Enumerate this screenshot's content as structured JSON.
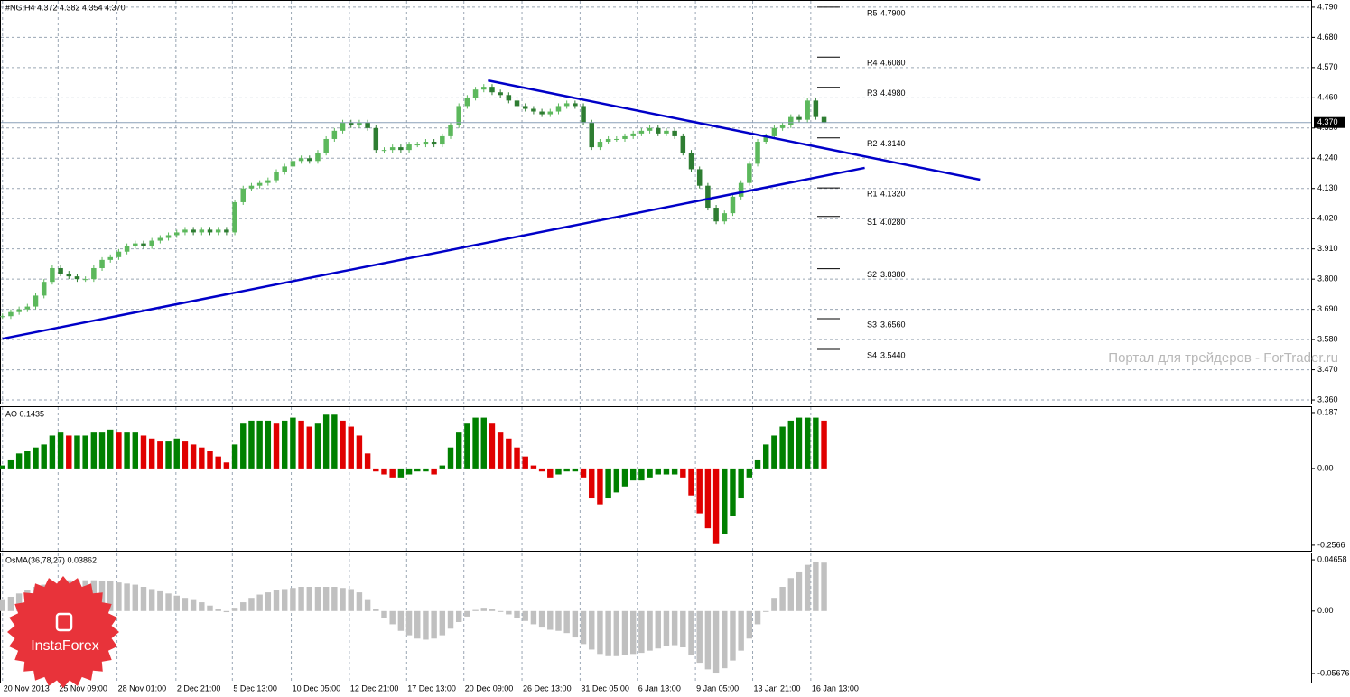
{
  "chart_data": [
    {
      "type": "candlestick",
      "title": "#NG,H4  4.372 4.382 4.354 4.370",
      "up_color": "#5cb85c",
      "down_color": "#2e7d32",
      "values": [
        3.665,
        3.68,
        3.69,
        3.7,
        3.74,
        3.79,
        3.84,
        3.82,
        3.81,
        3.8,
        3.8,
        3.84,
        3.87,
        3.88,
        3.9,
        3.92,
        3.93,
        3.92,
        3.94,
        3.95,
        3.96,
        3.97,
        3.98,
        3.97,
        3.98,
        3.97,
        3.98,
        3.97,
        4.08,
        4.13,
        4.14,
        4.15,
        4.16,
        4.19,
        4.21,
        4.23,
        4.24,
        4.23,
        4.26,
        4.31,
        4.34,
        4.37,
        4.36,
        4.37,
        4.35,
        4.27,
        4.27,
        4.28,
        4.27,
        4.29,
        4.29,
        4.3,
        4.29,
        4.32,
        4.36,
        4.43,
        4.46,
        4.49,
        4.5,
        4.48,
        4.47,
        4.45,
        4.43,
        4.42,
        4.41,
        4.4,
        4.41,
        4.43,
        4.44,
        4.43,
        4.37,
        4.28,
        4.3,
        4.31,
        4.31,
        4.32,
        4.33,
        4.34,
        4.35,
        4.33,
        4.34,
        4.32,
        4.26,
        4.2,
        4.14,
        4.06,
        4.01,
        4.04,
        4.1,
        4.15,
        4.22,
        4.3,
        4.32,
        4.35,
        4.36,
        4.39,
        4.38,
        4.45,
        4.39,
        4.37
      ],
      "xlim": [
        -0.3,
        157.7
      ],
      "ylim": [
        3.347,
        4.816
      ],
      "grid": true,
      "yticks": [
        {
          "value": 4.79,
          "label": "4.790"
        },
        {
          "value": 4.68,
          "label": "4.680"
        },
        {
          "value": 4.57,
          "label": "4.570"
        },
        {
          "value": 4.46,
          "label": "4.460"
        },
        {
          "value": 4.35,
          "label": "4.350"
        },
        {
          "value": 4.24,
          "label": "4.240"
        },
        {
          "value": 4.13,
          "label": "4.130"
        },
        {
          "value": 4.02,
          "label": "4.020"
        },
        {
          "value": 3.91,
          "label": "3.910"
        },
        {
          "value": 3.8,
          "label": "3.800"
        },
        {
          "value": 3.69,
          "label": "3.690"
        },
        {
          "value": 3.58,
          "label": "3.580"
        },
        {
          "value": 3.47,
          "label": "3.470"
        },
        {
          "value": 3.36,
          "label": "3.360"
        }
      ],
      "xticks": [
        {
          "value": 0,
          "label": "20 Nov 2013"
        },
        {
          "value": 6.7,
          "label": "25 Nov 09:00"
        },
        {
          "value": 13.8,
          "label": "28 Nov 01:00"
        },
        {
          "value": 20.9,
          "label": "2 Dec 21:00"
        },
        {
          "value": 27.7,
          "label": "5 Dec 13:00"
        },
        {
          "value": 34.8,
          "label": "10 Dec 05:00"
        },
        {
          "value": 41.8,
          "label": "12 Dec 21:00"
        },
        {
          "value": 48.7,
          "label": "17 Dec 13:00"
        },
        {
          "value": 55.6,
          "label": "20 Dec 09:00"
        },
        {
          "value": 62.6,
          "label": "26 Dec 13:00"
        },
        {
          "value": 69.6,
          "label": "31 Dec 05:00"
        },
        {
          "value": 76.5,
          "label": "6 Jan 13:00"
        },
        {
          "value": 83.5,
          "label": "9 Jan 05:00"
        },
        {
          "value": 90.4,
          "label": "13 Jan 21:00"
        },
        {
          "value": 97.4,
          "label": "16 Jan 13:00"
        }
      ],
      "current_price": {
        "value": 4.37,
        "label": "4.370"
      },
      "pivots": [
        {
          "name": "R5",
          "value": 4.79,
          "label": "4.7900"
        },
        {
          "name": "R4",
          "value": 4.608,
          "label": "4.6080"
        },
        {
          "name": "R3",
          "value": 4.498,
          "label": "4.4980"
        },
        {
          "name": "R2",
          "value": 4.314,
          "label": "4.3140"
        },
        {
          "name": "R1",
          "value": 4.132,
          "label": "4.1320"
        },
        {
          "name": "S1",
          "value": 4.028,
          "label": "4.0280"
        },
        {
          "name": "S2",
          "value": 3.838,
          "label": "3.8380"
        },
        {
          "name": "S3",
          "value": 3.656,
          "label": "3.6560"
        },
        {
          "name": "S4",
          "value": 3.544,
          "label": "3.5440"
        }
      ],
      "trendlines": [
        {
          "x": [
            58.5,
            117.8
          ],
          "y": [
            4.523,
            4.162
          ],
          "color": "#0000c8"
        },
        {
          "x": [
            0,
            103.9
          ],
          "y": [
            3.583,
            4.205
          ],
          "color": "#0000c8"
        }
      ],
      "watermark": "Портал для трейдеров - ForTrader.ru"
    },
    {
      "type": "histogram",
      "title": "AO 0.1435",
      "up_color": "#008000",
      "down_color": "#e00000",
      "values": [
        0.01,
        0.03,
        0.05,
        0.06,
        0.07,
        0.08,
        0.11,
        0.12,
        0.11,
        0.11,
        0.11,
        0.12,
        0.12,
        0.13,
        0.12,
        0.12,
        0.12,
        0.11,
        0.1,
        0.09,
        0.09,
        0.1,
        0.09,
        0.08,
        0.07,
        0.06,
        0.04,
        0.02,
        0.08,
        0.15,
        0.16,
        0.16,
        0.16,
        0.15,
        0.16,
        0.17,
        0.16,
        0.14,
        0.15,
        0.18,
        0.18,
        0.16,
        0.14,
        0.11,
        0.05,
        -0.01,
        -0.02,
        -0.03,
        -0.03,
        -0.02,
        -0.01,
        -0.01,
        -0.02,
        0.01,
        0.07,
        0.12,
        0.15,
        0.17,
        0.17,
        0.15,
        0.12,
        0.1,
        0.07,
        0.04,
        0.01,
        -0.01,
        -0.03,
        -0.02,
        -0.01,
        -0.01,
        -0.03,
        -0.1,
        -0.12,
        -0.1,
        -0.08,
        -0.06,
        -0.04,
        -0.04,
        -0.03,
        -0.02,
        -0.02,
        -0.02,
        -0.03,
        -0.09,
        -0.15,
        -0.2,
        -0.25,
        -0.22,
        -0.16,
        -0.1,
        -0.03,
        0.03,
        0.08,
        0.11,
        0.14,
        0.16,
        0.17,
        0.17,
        0.17,
        0.16
      ],
      "xlim": [
        -0.3,
        157.7
      ],
      "ylim": [
        -0.275,
        0.208
      ],
      "yticks": [
        0.187,
        {
          "value": 0,
          "label": "0.00"
        },
        -0.2566
      ]
    },
    {
      "type": "histogram",
      "title": "OsMA(36,78,27) 0.03862",
      "color": "#c0c0c0",
      "values": [
        0.01,
        0.013,
        0.016,
        0.019,
        0.022,
        0.024,
        0.026,
        0.027,
        0.028,
        0.028,
        0.028,
        0.028,
        0.027,
        0.027,
        0.026,
        0.025,
        0.024,
        0.022,
        0.02,
        0.018,
        0.016,
        0.014,
        0.012,
        0.01,
        0.008,
        0.005,
        0.002,
        -0.001,
        0.003,
        0.008,
        0.012,
        0.015,
        0.017,
        0.019,
        0.02,
        0.021,
        0.022,
        0.022,
        0.022,
        0.022,
        0.022,
        0.021,
        0.02,
        0.017,
        0.01,
        0.002,
        -0.006,
        -0.012,
        -0.018,
        -0.022,
        -0.025,
        -0.026,
        -0.025,
        -0.022,
        -0.016,
        -0.01,
        -0.005,
        0.001,
        0.003,
        0.002,
        0.0,
        -0.003,
        -0.006,
        -0.009,
        -0.012,
        -0.015,
        -0.017,
        -0.018,
        -0.02,
        -0.024,
        -0.03,
        -0.035,
        -0.039,
        -0.041,
        -0.041,
        -0.04,
        -0.039,
        -0.038,
        -0.036,
        -0.034,
        -0.032,
        -0.031,
        -0.033,
        -0.04,
        -0.047,
        -0.053,
        -0.056,
        -0.052,
        -0.045,
        -0.036,
        -0.025,
        -0.012,
        0.0,
        0.012,
        0.022,
        0.03,
        0.036,
        0.042,
        0.045,
        0.044
      ],
      "xlim": [
        -0.3,
        157.7
      ],
      "ylim": [
        -0.065,
        0.0532
      ],
      "yticks": [
        0.04658,
        {
          "value": 0,
          "label": "0.00"
        },
        -0.05676
      ]
    }
  ],
  "logo": "InstaForex"
}
